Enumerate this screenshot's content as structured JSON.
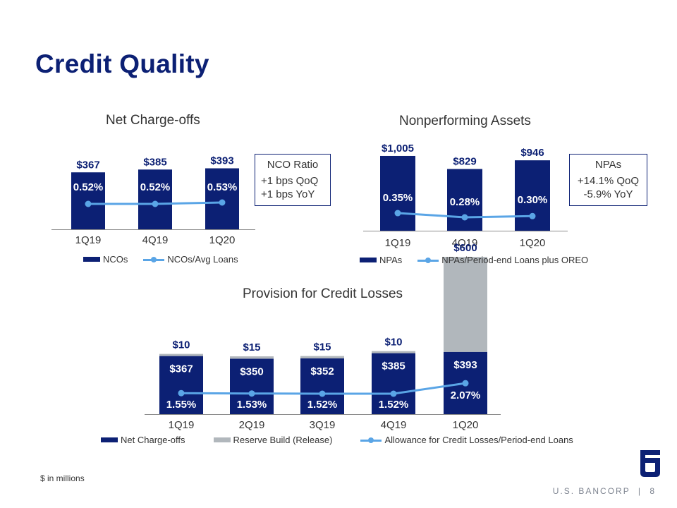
{
  "page": {
    "title": "Credit Quality",
    "footnote": "$ in millions",
    "footer_company": "U.S. BANCORP",
    "footer_separator": "|",
    "page_number": "8"
  },
  "colors": {
    "title": "#0c2074",
    "bar_primary": "#0c2074",
    "bar_secondary": "#b1b7bc",
    "line": "#5aa5e6",
    "footer_text": "#7f8591"
  },
  "callouts": {
    "nco": {
      "title": "NCO Ratio",
      "lines": [
        "+1 bps QoQ",
        "+1 bps YoY"
      ]
    },
    "npa": {
      "title": "NPAs",
      "lines": [
        "+14.1% QoQ",
        "-5.9% YoY"
      ]
    }
  },
  "chart_data": [
    {
      "id": "nco",
      "type": "bar",
      "title": "Net Charge-offs",
      "categories": [
        "1Q19",
        "4Q19",
        "1Q20"
      ],
      "series": [
        {
          "name": "NCOs",
          "kind": "bar",
          "values": [
            367,
            385,
            393
          ],
          "labels": [
            "$367",
            "$385",
            "$393"
          ]
        },
        {
          "name": "NCOs/Avg Loans",
          "kind": "line",
          "values": [
            0.52,
            0.52,
            0.53
          ],
          "labels": [
            "0.52%",
            "0.52%",
            "0.53%"
          ]
        }
      ],
      "legend_position": "bottom"
    },
    {
      "id": "npa",
      "type": "bar",
      "title": "Nonperforming Assets",
      "categories": [
        "1Q19",
        "4Q19",
        "1Q20"
      ],
      "series": [
        {
          "name": "NPAs",
          "kind": "bar",
          "values": [
            1005,
            829,
            946
          ],
          "labels": [
            "$1,005",
            "$829",
            "$946"
          ]
        },
        {
          "name": "NPAs/Period-end Loans plus OREO",
          "kind": "line",
          "values": [
            0.35,
            0.28,
            0.3
          ],
          "labels": [
            "0.35%",
            "0.28%",
            "0.30%"
          ]
        }
      ],
      "legend_position": "bottom"
    },
    {
      "id": "prov",
      "type": "bar",
      "stacked": true,
      "title": "Provision for Credit Losses",
      "categories": [
        "1Q19",
        "2Q19",
        "3Q19",
        "4Q19",
        "1Q20"
      ],
      "series": [
        {
          "name": "Net Charge-offs",
          "kind": "bar",
          "values": [
            367,
            350,
            352,
            385,
            393
          ],
          "labels": [
            "$367",
            "$350",
            "$352",
            "$385",
            "$393"
          ]
        },
        {
          "name": "Reserve Build (Release)",
          "kind": "bar",
          "values": [
            10,
            15,
            15,
            10,
            600
          ],
          "labels": [
            "$10",
            "$15",
            "$15",
            "$10",
            "$600"
          ]
        },
        {
          "name": "Allowance for Credit Losses/Period-end Loans",
          "kind": "line",
          "values": [
            1.55,
            1.53,
            1.52,
            1.52,
            2.07
          ],
          "labels": [
            "1.55%",
            "1.53%",
            "1.52%",
            "1.52%",
            "2.07%"
          ]
        }
      ],
      "legend_position": "bottom"
    }
  ]
}
